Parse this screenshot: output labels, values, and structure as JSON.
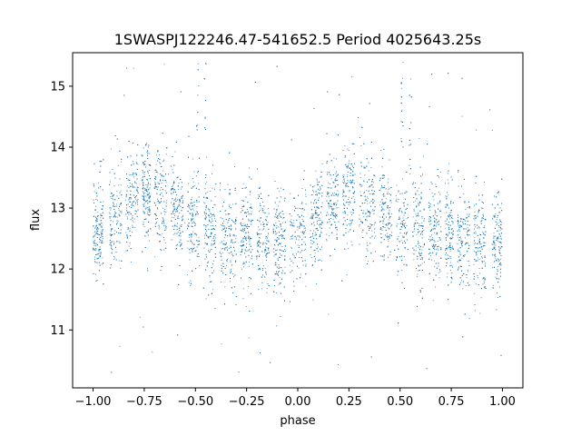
{
  "chart_data": {
    "type": "scatter",
    "title": "1SWASPJ122246.47-541652.5 Period 4025643.25s",
    "xlabel": "phase",
    "ylabel": "flux",
    "xlim": [
      -1.1,
      1.1
    ],
    "ylim": [
      10.05,
      15.55
    ],
    "grid": false,
    "legend": "none",
    "marker_color": "#1f77b4",
    "x_ticks": [
      -1.0,
      -0.75,
      -0.5,
      -0.25,
      0.0,
      0.25,
      0.5,
      0.75,
      1.0
    ],
    "x_tick_labels": [
      "−1.00",
      "−0.75",
      "−0.50",
      "−0.25",
      "0.00",
      "0.25",
      "0.50",
      "0.75",
      "1.00"
    ],
    "y_ticks": [
      11,
      12,
      13,
      14,
      15
    ],
    "y_tick_labels": [
      "11",
      "12",
      "13",
      "14",
      "15"
    ],
    "series": [
      {
        "x_range": [
          -1.0,
          1.0
        ],
        "point_count": 9000,
        "typical_flux_range": [
          11.8,
          13.6
        ],
        "outlier_flux_range": [
          10.3,
          15.4
        ],
        "mean_flux": 12.75,
        "dense_phase_segments": [
          [
            -1.0,
            -0.95
          ],
          [
            -0.92,
            -0.86
          ],
          [
            -0.84,
            -0.78
          ],
          [
            -0.76,
            -0.72
          ],
          [
            -0.7,
            -0.64
          ],
          [
            -0.62,
            -0.56
          ],
          [
            -0.54,
            -0.48
          ],
          [
            -0.46,
            -0.4
          ],
          [
            -0.38,
            -0.3
          ],
          [
            -0.28,
            -0.22
          ],
          [
            -0.2,
            -0.14
          ],
          [
            -0.12,
            -0.06
          ],
          [
            -0.04,
            0.04
          ],
          [
            0.06,
            0.12
          ],
          [
            0.14,
            0.2
          ],
          [
            0.22,
            0.28
          ],
          [
            0.3,
            0.38
          ],
          [
            0.4,
            0.46
          ],
          [
            0.48,
            0.54
          ],
          [
            0.56,
            0.62
          ],
          [
            0.64,
            0.7
          ],
          [
            0.72,
            0.76
          ],
          [
            0.78,
            0.84
          ],
          [
            0.86,
            0.92
          ],
          [
            0.95,
            1.0
          ]
        ],
        "bright_spikes_phase": [
          -0.49,
          -0.45,
          0.51,
          0.55
        ]
      }
    ]
  }
}
